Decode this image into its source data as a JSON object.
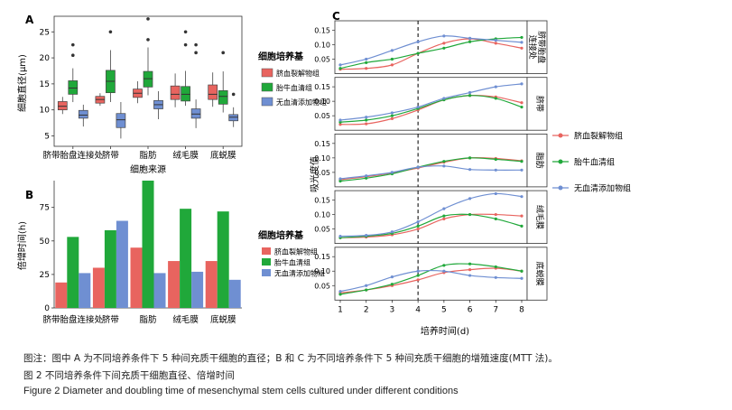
{
  "caption": {
    "note": "图注：图中 A 为不同培养条件下 5 种间充质干细胞的直径；B 和 C 为不同培养条件下 5 种间充质干细胞的增殖速度(MTT 法)。",
    "title_cn": "图 2   不同培养条件下间充质干细胞直径、倍增时间",
    "title_en": "Figure 2   Diameter and doubling time of mesenchymal stem cells cultured under different conditions"
  },
  "colors": {
    "umbilical_serum": "#e8645f",
    "fbs": "#20a83a",
    "serum_free": "#6f8fd2"
  },
  "chart_data": [
    {
      "panel": "A",
      "type": "box",
      "xlabel": "细胞来源",
      "ylabel": "细胞直径(μm)",
      "ylim": [
        3,
        28
      ],
      "yticks": [
        5,
        10,
        15,
        20,
        25
      ],
      "categories": [
        "脐带胎盘连接处",
        "脐带",
        "脂肪",
        "绒毛膜",
        "底蜕膜"
      ],
      "legend": {
        "title": "细胞培养基",
        "position": "right"
      },
      "series": [
        {
          "name": "脐血裂解物组",
          "stats": [
            [
              9.2,
              10,
              10.7,
              11.6,
              12.5
            ],
            [
              10.8,
              11.3,
              12,
              12.6,
              13.2
            ],
            [
              11.3,
              12.4,
              13.2,
              14,
              15.5
            ],
            [
              10.5,
              12,
              13,
              14.6,
              17
            ],
            [
              10.6,
              12,
              13,
              14.8,
              17.2
            ]
          ],
          "outliers": [
            [],
            [],
            [],
            [],
            []
          ]
        },
        {
          "name": "胎牛血清组",
          "stats": [
            [
              11.5,
              13,
              14.2,
              15.6,
              18
            ],
            [
              11.5,
              13.3,
              15.5,
              17.6,
              21.5
            ],
            [
              12.8,
              14.4,
              16,
              17.4,
              22
            ],
            [
              10.8,
              11.7,
              13,
              14.5,
              17.5
            ],
            [
              9.5,
              11.1,
              12.6,
              13.7,
              17.4
            ]
          ],
          "outliers": [
            [
              20.5,
              22.5
            ],
            [
              25
            ],
            [
              23.5,
              27.5
            ],
            [
              22.5,
              25
            ],
            [
              21
            ]
          ]
        },
        {
          "name": "无血清添加物组",
          "stats": [
            [
              6.8,
              8.4,
              9,
              9.9,
              11
            ],
            [
              4.5,
              6.6,
              8.1,
              9.3,
              11.5
            ],
            [
              8.2,
              10.2,
              11,
              11.8,
              13.6
            ],
            [
              6.5,
              8.4,
              9.2,
              10.2,
              12
            ],
            [
              6.7,
              7.9,
              8.6,
              9.1,
              10.5
            ]
          ],
          "outliers": [
            [],
            [],
            [],
            [
              21,
              22.5
            ],
            [
              13
            ]
          ]
        }
      ]
    },
    {
      "panel": "B",
      "type": "bar",
      "xlabel": "",
      "ylabel": "倍增时间(h)",
      "ylim": [
        0,
        95
      ],
      "yticks": [
        0,
        25,
        50,
        75
      ],
      "categories": [
        "脐带胎盘连接处",
        "脐带",
        "脂肪",
        "绒毛膜",
        "底蜕膜"
      ],
      "legend": {
        "title": "细胞培养基",
        "position": "right"
      },
      "series": [
        {
          "name": "脐血裂解物组",
          "values": [
            19,
            30,
            45,
            35,
            35
          ]
        },
        {
          "name": "胎牛血清组",
          "values": [
            53,
            58,
            95,
            74,
            72
          ]
        },
        {
          "name": "无血清添加物组",
          "values": [
            26,
            65,
            26,
            27,
            21
          ]
        }
      ]
    },
    {
      "panel": "C",
      "type": "line",
      "xlabel": "培养时间(d)",
      "ylabel": "吸光度值",
      "x": [
        1,
        2,
        3,
        4,
        5,
        6,
        7,
        8
      ],
      "xlim": [
        1,
        8
      ],
      "ylim": [
        0,
        0.17
      ],
      "yticks": [
        0.05,
        0.1,
        0.15
      ],
      "dashed_vline_x": 4,
      "legend": {
        "position": "right",
        "entries": [
          "脐血裂解物组",
          "胎牛血清组",
          "无血清添加物组"
        ]
      },
      "facets": [
        {
          "label": "脐带胎盘连接处",
          "series": [
            {
              "name": "脐血裂解物组",
              "values": [
                0.015,
                0.018,
                0.03,
                0.07,
                0.105,
                0.12,
                0.105,
                0.088
              ]
            },
            {
              "name": "胎牛血清组",
              "values": [
                0.018,
                0.038,
                0.05,
                0.07,
                0.088,
                0.11,
                0.12,
                0.125
              ]
            },
            {
              "name": "无血清添加物组",
              "values": [
                0.03,
                0.05,
                0.08,
                0.11,
                0.13,
                0.122,
                0.115,
                0.108
              ]
            }
          ]
        },
        {
          "label": "脐带",
          "series": [
            {
              "name": "脐血裂解物组",
              "values": [
                0.02,
                0.022,
                0.04,
                0.07,
                0.105,
                0.12,
                0.115,
                0.095
              ]
            },
            {
              "name": "胎牛血清组",
              "values": [
                0.028,
                0.035,
                0.05,
                0.075,
                0.105,
                0.12,
                0.11,
                0.08
              ]
            },
            {
              "name": "无血清添加物组",
              "values": [
                0.035,
                0.045,
                0.06,
                0.08,
                0.11,
                0.13,
                0.15,
                0.16
              ]
            }
          ]
        },
        {
          "label": "脂肪",
          "series": [
            {
              "name": "脐血裂解物组",
              "values": [
                0.025,
                0.035,
                0.048,
                0.065,
                0.085,
                0.1,
                0.098,
                0.09
              ]
            },
            {
              "name": "胎牛血清组",
              "values": [
                0.02,
                0.03,
                0.045,
                0.068,
                0.088,
                0.1,
                0.095,
                0.088
              ]
            },
            {
              "name": "无血清添加物组",
              "values": [
                0.028,
                0.038,
                0.05,
                0.068,
                0.072,
                0.06,
                0.058,
                0.058
              ]
            }
          ]
        },
        {
          "label": "绒毛膜",
          "series": [
            {
              "name": "脐血裂解物组",
              "values": [
                0.02,
                0.022,
                0.03,
                0.05,
                0.085,
                0.1,
                0.1,
                0.095
              ]
            },
            {
              "name": "胎牛血清组",
              "values": [
                0.02,
                0.025,
                0.035,
                0.06,
                0.095,
                0.1,
                0.085,
                0.06
              ]
            },
            {
              "name": "无血清添加物组",
              "values": [
                0.025,
                0.028,
                0.04,
                0.075,
                0.12,
                0.155,
                0.172,
                0.162
              ]
            }
          ]
        },
        {
          "label": "底蜕膜",
          "series": [
            {
              "name": "脐血裂解物组",
              "values": [
                0.025,
                0.035,
                0.05,
                0.07,
                0.095,
                0.105,
                0.11,
                0.1
              ]
            },
            {
              "name": "胎牛血清组",
              "values": [
                0.02,
                0.035,
                0.055,
                0.085,
                0.12,
                0.125,
                0.115,
                0.1
              ]
            },
            {
              "name": "无血清添加物组",
              "values": [
                0.03,
                0.05,
                0.08,
                0.1,
                0.1,
                0.085,
                0.078,
                0.075
              ]
            }
          ]
        }
      ]
    }
  ]
}
